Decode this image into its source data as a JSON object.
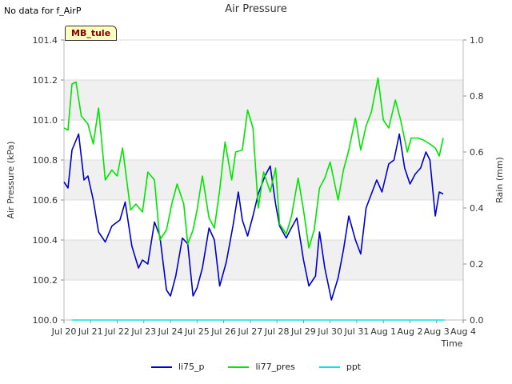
{
  "header": {
    "nodata_text": "No data for f_AirP"
  },
  "badge": {
    "label": "MB_tule"
  },
  "chart_data": {
    "type": "line",
    "title": "Air Pressure",
    "xlabel": "Time",
    "ylabel": "Air Pressure (kPa)",
    "y2label": "Rain (mm)",
    "x_range": [
      0,
      15
    ],
    "ylim": [
      100.0,
      101.4
    ],
    "y2lim": [
      0.0,
      1.0
    ],
    "x_ticks": [
      {
        "v": 0,
        "label": "Jul 20"
      },
      {
        "v": 1,
        "label": "Jul 21"
      },
      {
        "v": 2,
        "label": "Jul 22"
      },
      {
        "v": 3,
        "label": "Jul 23"
      },
      {
        "v": 4,
        "label": "Jul 24"
      },
      {
        "v": 5,
        "label": "Jul 25"
      },
      {
        "v": 6,
        "label": "Jul 26"
      },
      {
        "v": 7,
        "label": "Jul 27"
      },
      {
        "v": 8,
        "label": "Jul 28"
      },
      {
        "v": 9,
        "label": "Jul 29"
      },
      {
        "v": 10,
        "label": "Jul 30"
      },
      {
        "v": 11,
        "label": "Jul 31"
      },
      {
        "v": 12,
        "label": "Aug 1"
      },
      {
        "v": 13,
        "label": "Aug 2"
      },
      {
        "v": 14,
        "label": "Aug 3"
      },
      {
        "v": 15,
        "label": "Aug 4"
      }
    ],
    "y_ticks": [
      "100.0",
      "100.2",
      "100.4",
      "100.6",
      "100.8",
      "101.0",
      "101.2",
      "101.4"
    ],
    "y2_ticks": [
      "0.0",
      "0.2",
      "0.4",
      "0.6",
      "0.8",
      "1.0"
    ],
    "series": [
      {
        "name": "li75_p",
        "color": "#0000cc",
        "axis": "left",
        "x": [
          0.0,
          0.15,
          0.3,
          0.55,
          0.75,
          0.9,
          1.1,
          1.3,
          1.55,
          1.8,
          2.1,
          2.3,
          2.55,
          2.8,
          2.95,
          3.15,
          3.4,
          3.6,
          3.85,
          4.0,
          4.2,
          4.45,
          4.65,
          4.85,
          5.0,
          5.2,
          5.45,
          5.65,
          5.85,
          6.1,
          6.35,
          6.55,
          6.7,
          6.9,
          7.1,
          7.3,
          7.55,
          7.75,
          7.95,
          8.1,
          8.35,
          8.5,
          8.75,
          9.0,
          9.2,
          9.45,
          9.6,
          9.8,
          10.05,
          10.3,
          10.5,
          10.7,
          10.95,
          11.15,
          11.35,
          11.55,
          11.75,
          11.95,
          12.2,
          12.4,
          12.6,
          12.8,
          13.0,
          13.2,
          13.4,
          13.6,
          13.75,
          13.95,
          14.1,
          14.25
        ],
        "values": [
          100.69,
          100.66,
          100.85,
          100.93,
          100.7,
          100.72,
          100.6,
          100.44,
          100.39,
          100.47,
          100.5,
          100.59,
          100.37,
          100.26,
          100.3,
          100.28,
          100.49,
          100.42,
          100.15,
          100.12,
          100.22,
          100.41,
          100.38,
          100.12,
          100.16,
          100.26,
          100.46,
          100.4,
          100.17,
          100.29,
          100.47,
          100.64,
          100.5,
          100.42,
          100.52,
          100.63,
          100.72,
          100.77,
          100.58,
          100.47,
          100.41,
          100.45,
          100.51,
          100.3,
          100.17,
          100.22,
          100.44,
          100.26,
          100.1,
          100.21,
          100.35,
          100.52,
          100.4,
          100.33,
          100.56,
          100.63,
          100.7,
          100.64,
          100.78,
          100.8,
          100.93,
          100.76,
          100.68,
          100.73,
          100.76,
          100.84,
          100.8,
          100.52,
          100.64,
          100.63
        ]
      },
      {
        "name": "li77_pres",
        "color": "#00e600",
        "axis": "left",
        "x": [
          0.0,
          0.15,
          0.3,
          0.45,
          0.65,
          0.9,
          1.1,
          1.3,
          1.55,
          1.8,
          2.0,
          2.2,
          2.5,
          2.7,
          2.95,
          3.15,
          3.4,
          3.6,
          3.85,
          4.05,
          4.25,
          4.5,
          4.65,
          4.85,
          5.0,
          5.2,
          5.45,
          5.65,
          5.85,
          6.05,
          6.3,
          6.45,
          6.7,
          6.9,
          7.1,
          7.3,
          7.5,
          7.75,
          7.95,
          8.1,
          8.35,
          8.55,
          8.8,
          9.0,
          9.2,
          9.4,
          9.6,
          9.8,
          10.0,
          10.3,
          10.5,
          10.7,
          10.95,
          11.15,
          11.35,
          11.55,
          11.8,
          12.0,
          12.2,
          12.45,
          12.65,
          12.9,
          13.05,
          13.3,
          13.5,
          13.75,
          13.95,
          14.1,
          14.25
        ],
        "values": [
          100.96,
          100.95,
          101.18,
          101.19,
          101.02,
          100.98,
          100.88,
          101.06,
          100.7,
          100.75,
          100.72,
          100.86,
          100.55,
          100.58,
          100.54,
          100.74,
          100.7,
          100.4,
          100.45,
          100.58,
          100.68,
          100.58,
          100.38,
          100.45,
          100.55,
          100.72,
          100.51,
          100.46,
          100.65,
          100.89,
          100.7,
          100.84,
          100.85,
          101.05,
          100.96,
          100.56,
          100.74,
          100.64,
          100.76,
          100.48,
          100.43,
          100.52,
          100.71,
          100.55,
          100.36,
          100.45,
          100.66,
          100.71,
          100.79,
          100.6,
          100.75,
          100.85,
          101.01,
          100.85,
          100.97,
          101.04,
          101.21,
          101.0,
          100.96,
          101.1,
          101.0,
          100.84,
          100.91,
          100.91,
          100.9,
          100.88,
          100.86,
          100.82,
          100.91
        ],
        "note": "x and values arrays sampled from visible trace"
      },
      {
        "name": "ppt",
        "color": "#00e5e5",
        "axis": "right",
        "x": [
          0.3,
          14.3
        ],
        "values": [
          0.0,
          0.0
        ]
      }
    ]
  }
}
